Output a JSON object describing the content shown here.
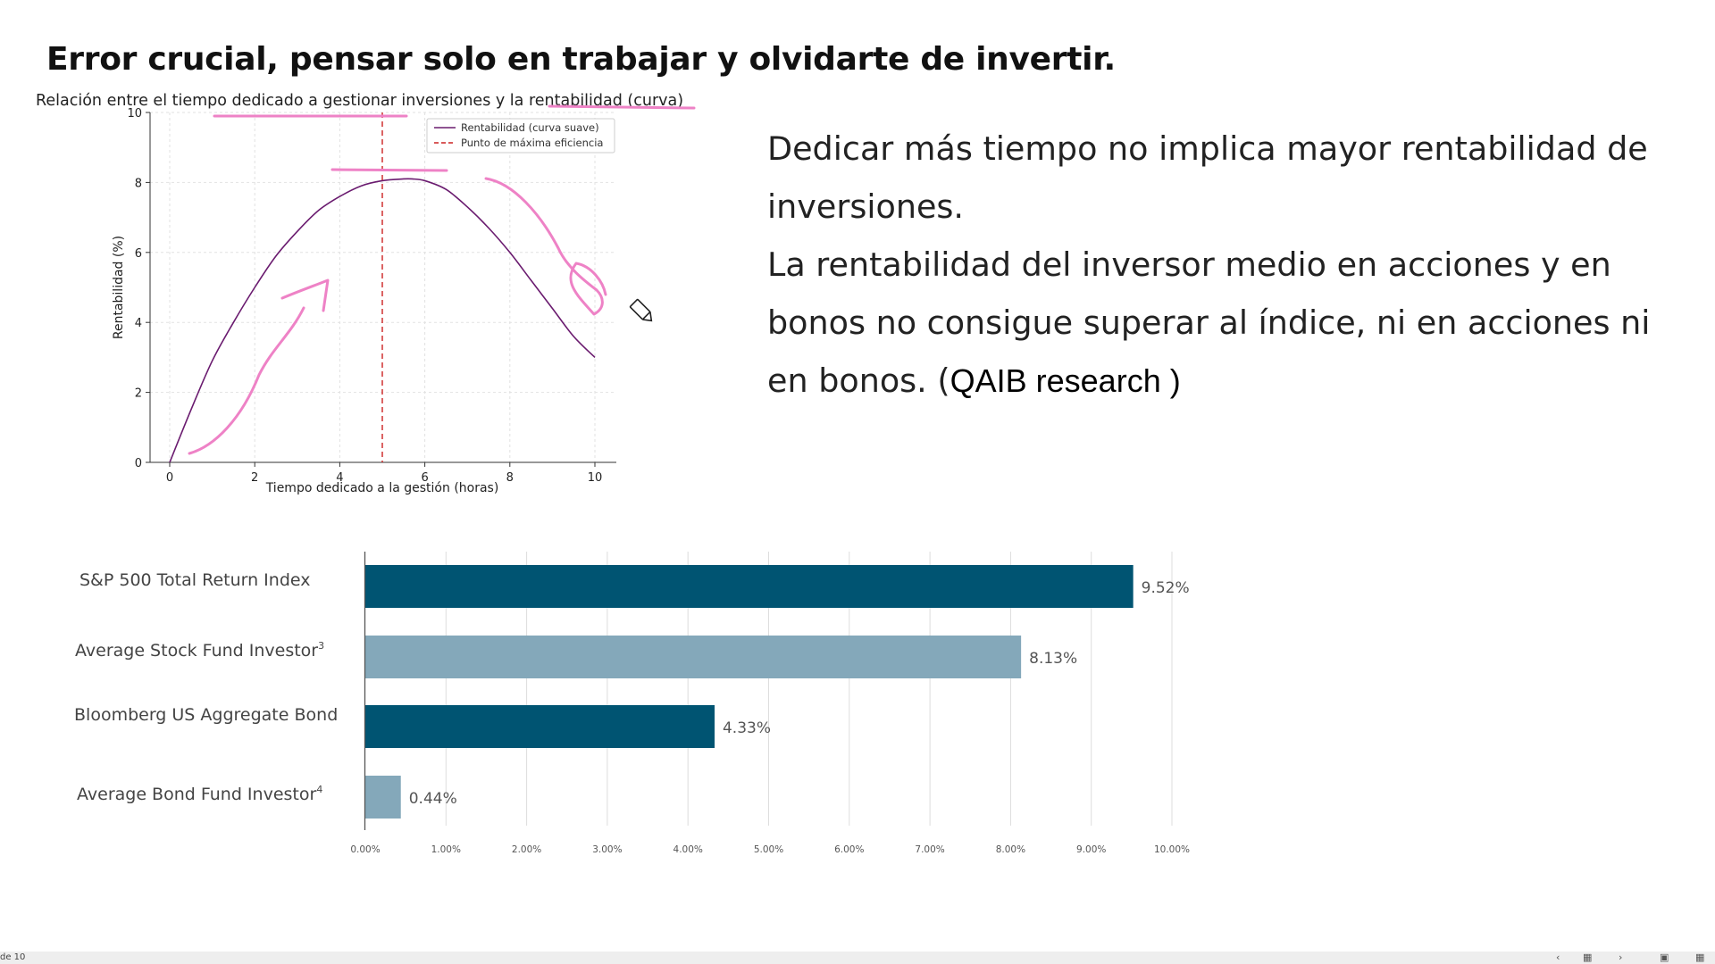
{
  "slide": {
    "title": "Error crucial, pensar solo en trabajar y olvidarte de invertir.",
    "paragraph1": "Dedicar más tiempo no implica mayor rentabilidad de inversiones.",
    "paragraph2_main": "La rentabilidad del inversor medio en acciones y en bonos no consigue superar al índice, ni en acciones ni en bonos. (",
    "paragraph2_source": "QAIB research )"
  },
  "chart_data": [
    {
      "type": "line",
      "title": "Relación entre el tiempo dedicado a gestionar inversiones y la rentabilidad (curva)",
      "xlabel": "Tiempo dedicado a la gestión (horas)",
      "ylabel": "Rentabilidad (%)",
      "xlim": [
        0,
        10
      ],
      "ylim": [
        0,
        10
      ],
      "x_ticks": [
        "0",
        "2",
        "4",
        "6",
        "8",
        "10"
      ],
      "y_ticks": [
        "0",
        "2",
        "4",
        "6",
        "8",
        "10"
      ],
      "grid": true,
      "legend_position": "top-right",
      "series": [
        {
          "name": "Rentabilidad (curva suave)",
          "color": "#6a1b6f",
          "x": [
            0,
            0.5,
            1,
            1.5,
            2,
            2.5,
            3,
            3.5,
            4,
            4.5,
            5,
            5.5,
            5.7,
            6,
            6.5,
            7,
            7.5,
            8,
            8.5,
            9,
            9.5,
            10
          ],
          "y": [
            0,
            1.5,
            2.9,
            4.0,
            5.0,
            5.9,
            6.6,
            7.2,
            7.6,
            7.9,
            8.05,
            8.1,
            8.1,
            8.05,
            7.8,
            7.3,
            6.7,
            6.0,
            5.2,
            4.4,
            3.6,
            3.0
          ]
        },
        {
          "name": "Punto de máxima eficiencia",
          "color": "#cc2222",
          "style": "dashed",
          "orientation": "vertical",
          "x": 5
        }
      ]
    },
    {
      "type": "bar",
      "orientation": "horizontal",
      "categories": [
        {
          "name": "S&P 500 Total Return Index",
          "sup": ""
        },
        {
          "name": "Average Stock Fund Investor",
          "sup": "3"
        },
        {
          "name": "Bloomberg US Aggregate Bond",
          "sup": ""
        },
        {
          "name": "Average Bond Fund Investor",
          "sup": "4"
        }
      ],
      "values": [
        9.52,
        8.13,
        4.33,
        0.44
      ],
      "value_labels": [
        "9.52%",
        "8.13%",
        "4.33%",
        "0.44%"
      ],
      "colors": [
        "#005472",
        "#84a8ba",
        "#005472",
        "#84a8ba"
      ],
      "xlim": [
        0,
        10
      ],
      "x_ticks": [
        "0.00%",
        "1.00%",
        "2.00%",
        "3.00%",
        "4.00%",
        "5.00%",
        "6.00%",
        "7.00%",
        "8.00%",
        "9.00%",
        "10.00%"
      ],
      "grid": true
    }
  ],
  "statusbar": {
    "page_indicator": "de 10"
  }
}
